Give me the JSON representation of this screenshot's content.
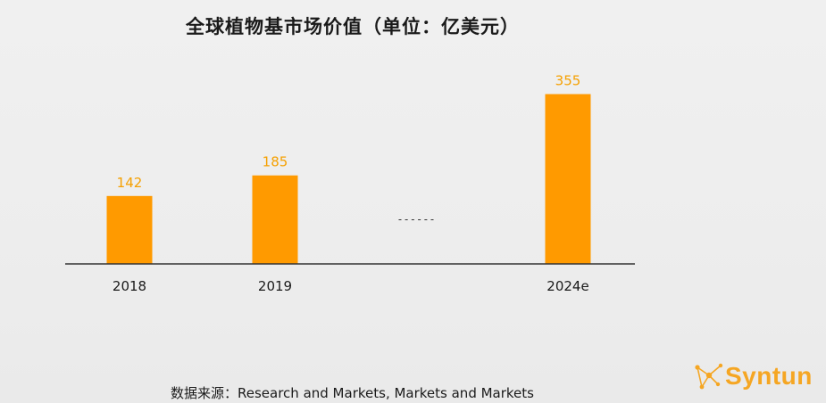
{
  "chart_data": {
    "type": "bar",
    "title": "全球植物基市场价值（单位：亿美元）",
    "categories": [
      "2018",
      "2019",
      "2024e"
    ],
    "values": [
      142,
      185,
      355
    ],
    "gap_marker": "------",
    "ylim": [
      0,
      400
    ],
    "grid": false,
    "legend": "none",
    "bar_color": "#ff9a00",
    "label_color": "#f5a000",
    "axis_color": "#333333"
  },
  "source": "数据来源：Research and Markets, Markets and Markets",
  "logo": {
    "text": "Syntun",
    "color": "#f5a623",
    "icon": "network-nodes-icon"
  }
}
